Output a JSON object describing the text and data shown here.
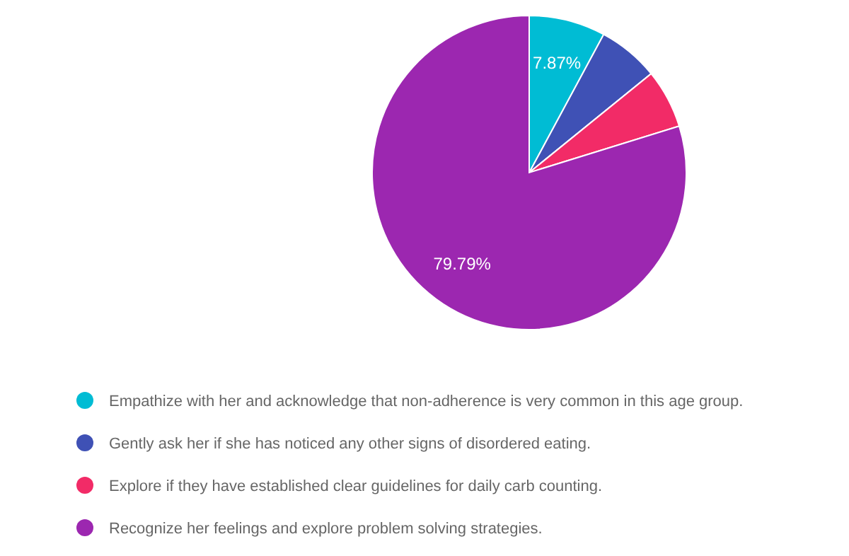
{
  "chart_data": {
    "type": "pie",
    "categories": [
      "Empathize with her and acknowledge that non-adherence is very common in this age group.",
      "Gently ask her if she has noticed any other signs of disordered eating.",
      "Explore if they have established clear guidelines for daily carb counting.",
      "Recognize her feelings and explore problem solving strategies."
    ],
    "values": [
      7.87,
      6.28,
      6.06,
      79.79
    ],
    "colors": [
      "#00bcd4",
      "#3f51b5",
      "#f22b67",
      "#9c27b0"
    ],
    "value_labels": [
      "7.87%",
      null,
      null,
      "79.79%"
    ],
    "legend": "bottom"
  }
}
